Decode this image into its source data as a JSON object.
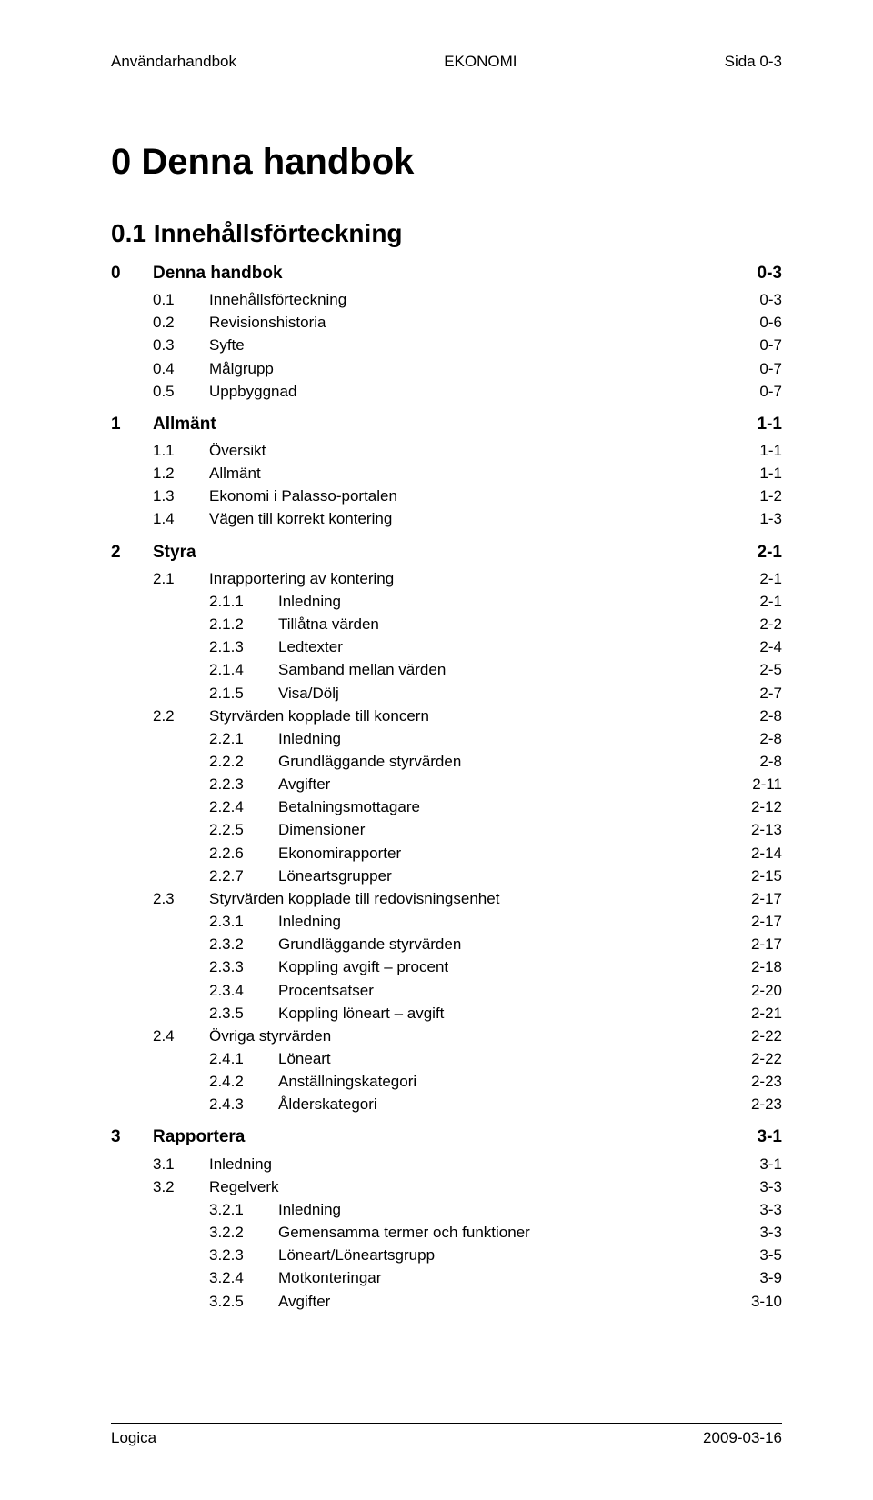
{
  "header": {
    "left": "Användarhandbok",
    "center": "EKONOMI",
    "right": "Sida 0-3"
  },
  "title": "0  Denna handbok",
  "section_heading": "0.1  Innehållsförteckning",
  "toc": [
    {
      "level": 0,
      "num": "0",
      "label": "Denna handbok",
      "page": "0-3"
    },
    {
      "level": 1,
      "num": "0.1",
      "label": "Innehållsförteckning",
      "page": "0-3"
    },
    {
      "level": 1,
      "num": "0.2",
      "label": "Revisionshistoria",
      "page": "0-6"
    },
    {
      "level": 1,
      "num": "0.3",
      "label": "Syfte",
      "page": "0-7"
    },
    {
      "level": 1,
      "num": "0.4",
      "label": "Målgrupp",
      "page": "0-7"
    },
    {
      "level": 1,
      "num": "0.5",
      "label": "Uppbyggnad",
      "page": "0-7"
    },
    {
      "level": 0,
      "num": "1",
      "label": "Allmänt",
      "page": "1-1"
    },
    {
      "level": 1,
      "num": "1.1",
      "label": "Översikt",
      "page": "1-1"
    },
    {
      "level": 1,
      "num": "1.2",
      "label": "Allmänt",
      "page": "1-1"
    },
    {
      "level": 1,
      "num": "1.3",
      "label": "Ekonomi i Palasso-portalen",
      "page": "1-2"
    },
    {
      "level": 1,
      "num": "1.4",
      "label": "Vägen till korrekt kontering",
      "page": "1-3"
    },
    {
      "level": 0,
      "num": "2",
      "label": "Styra",
      "page": "2-1"
    },
    {
      "level": 1,
      "num": "2.1",
      "label": "Inrapportering av kontering",
      "page": "2-1"
    },
    {
      "level": 2,
      "num": "2.1.1",
      "label": "Inledning",
      "page": "2-1"
    },
    {
      "level": 2,
      "num": "2.1.2",
      "label": "Tillåtna värden",
      "page": "2-2"
    },
    {
      "level": 2,
      "num": "2.1.3",
      "label": "Ledtexter",
      "page": "2-4"
    },
    {
      "level": 2,
      "num": "2.1.4",
      "label": "Samband mellan värden",
      "page": "2-5"
    },
    {
      "level": 2,
      "num": "2.1.5",
      "label": "Visa/Dölj",
      "page": "2-7"
    },
    {
      "level": 1,
      "num": "2.2",
      "label": "Styrvärden kopplade till koncern",
      "page": "2-8"
    },
    {
      "level": 2,
      "num": "2.2.1",
      "label": "Inledning",
      "page": "2-8"
    },
    {
      "level": 2,
      "num": "2.2.2",
      "label": "Grundläggande styrvärden",
      "page": "2-8"
    },
    {
      "level": 2,
      "num": "2.2.3",
      "label": "Avgifter",
      "page": "2-11"
    },
    {
      "level": 2,
      "num": "2.2.4",
      "label": "Betalningsmottagare",
      "page": "2-12"
    },
    {
      "level": 2,
      "num": "2.2.5",
      "label": "Dimensioner",
      "page": "2-13"
    },
    {
      "level": 2,
      "num": "2.2.6",
      "label": "Ekonomirapporter",
      "page": "2-14"
    },
    {
      "level": 2,
      "num": "2.2.7",
      "label": "Löneartsgrupper",
      "page": "2-15"
    },
    {
      "level": 1,
      "num": "2.3",
      "label": "Styrvärden kopplade till redovisningsenhet",
      "page": "2-17"
    },
    {
      "level": 2,
      "num": "2.3.1",
      "label": "Inledning",
      "page": "2-17"
    },
    {
      "level": 2,
      "num": "2.3.2",
      "label": "Grundläggande styrvärden",
      "page": "2-17"
    },
    {
      "level": 2,
      "num": "2.3.3",
      "label": "Koppling avgift – procent",
      "page": "2-18"
    },
    {
      "level": 2,
      "num": "2.3.4",
      "label": "Procentsatser",
      "page": "2-20"
    },
    {
      "level": 2,
      "num": "2.3.5",
      "label": "Koppling löneart – avgift",
      "page": "2-21"
    },
    {
      "level": 1,
      "num": "2.4",
      "label": "Övriga styrvärden",
      "page": "2-22"
    },
    {
      "level": 2,
      "num": "2.4.1",
      "label": "Löneart",
      "page": "2-22"
    },
    {
      "level": 2,
      "num": "2.4.2",
      "label": "Anställningskategori",
      "page": "2-23"
    },
    {
      "level": 2,
      "num": "2.4.3",
      "label": "Ålderskategori",
      "page": "2-23"
    },
    {
      "level": 0,
      "num": "3",
      "label": "Rapportera",
      "page": "3-1"
    },
    {
      "level": 1,
      "num": "3.1",
      "label": "Inledning",
      "page": "3-1"
    },
    {
      "level": 1,
      "num": "3.2",
      "label": "Regelverk",
      "page": "3-3"
    },
    {
      "level": 2,
      "num": "3.2.1",
      "label": "Inledning",
      "page": "3-3"
    },
    {
      "level": 2,
      "num": "3.2.2",
      "label": "Gemensamma termer och funktioner",
      "page": "3-3"
    },
    {
      "level": 2,
      "num": "3.2.3",
      "label": "Löneart/Löneartsgrupp",
      "page": "3-5"
    },
    {
      "level": 2,
      "num": "3.2.4",
      "label": "Motkonteringar",
      "page": "3-9"
    },
    {
      "level": 2,
      "num": "3.2.5",
      "label": "Avgifter",
      "page": "3-10"
    }
  ],
  "footer": {
    "left": "Logica",
    "right": "2009-03-16"
  },
  "style": {
    "page_bg": "#ffffff",
    "text_color": "#000000",
    "font_family": "Arial, Helvetica, sans-serif",
    "header_fontsize": 17,
    "title_fontsize": 40,
    "section_heading_fontsize": 28,
    "body_fontsize": 17,
    "lvl0_fontsize": 19,
    "footer_fontsize": 17,
    "footer_rule_color": "#000000"
  }
}
